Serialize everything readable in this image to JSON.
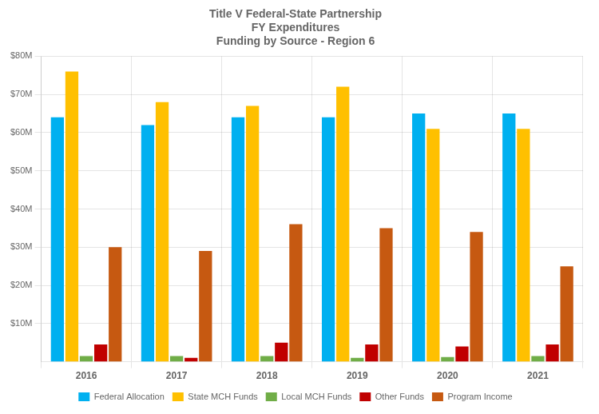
{
  "chart_data": {
    "type": "bar",
    "title": "Title V Federal-State Partnership\nFY Expenditures\nFunding by Source - Region 6",
    "categories": [
      "2016",
      "2017",
      "2018",
      "2019",
      "2020",
      "2021"
    ],
    "series": [
      {
        "name": "Federal Allocation",
        "color": "#00B0F0",
        "values": [
          64000000,
          62000000,
          64000000,
          64000000,
          65000000,
          65000000
        ]
      },
      {
        "name": "State MCH Funds",
        "color": "#FFC000",
        "values": [
          76000000,
          68000000,
          67000000,
          72000000,
          61000000,
          61000000
        ]
      },
      {
        "name": "Local MCH Funds",
        "color": "#70AD47",
        "values": [
          1500000,
          1500000,
          1500000,
          1000000,
          1200000,
          1500000
        ]
      },
      {
        "name": "Other Funds",
        "color": "#C00000",
        "values": [
          4500000,
          1000000,
          5000000,
          4500000,
          4000000,
          4500000
        ]
      },
      {
        "name": "Program Income",
        "color": "#C65911",
        "values": [
          30000000,
          29000000,
          36000000,
          35000000,
          34000000,
          25000000
        ]
      }
    ],
    "ylim": [
      0,
      80000000
    ],
    "yticks": [
      {
        "value": 10000000,
        "label": "$10M"
      },
      {
        "value": 20000000,
        "label": "$20M"
      },
      {
        "value": 30000000,
        "label": "$30M"
      },
      {
        "value": 40000000,
        "label": "$40M"
      },
      {
        "value": 50000000,
        "label": "$50M"
      },
      {
        "value": 60000000,
        "label": "$60M"
      },
      {
        "value": 70000000,
        "label": "$70M"
      },
      {
        "value": 80000000,
        "label": "$80M"
      }
    ],
    "grid": true,
    "legend": "bottom"
  }
}
